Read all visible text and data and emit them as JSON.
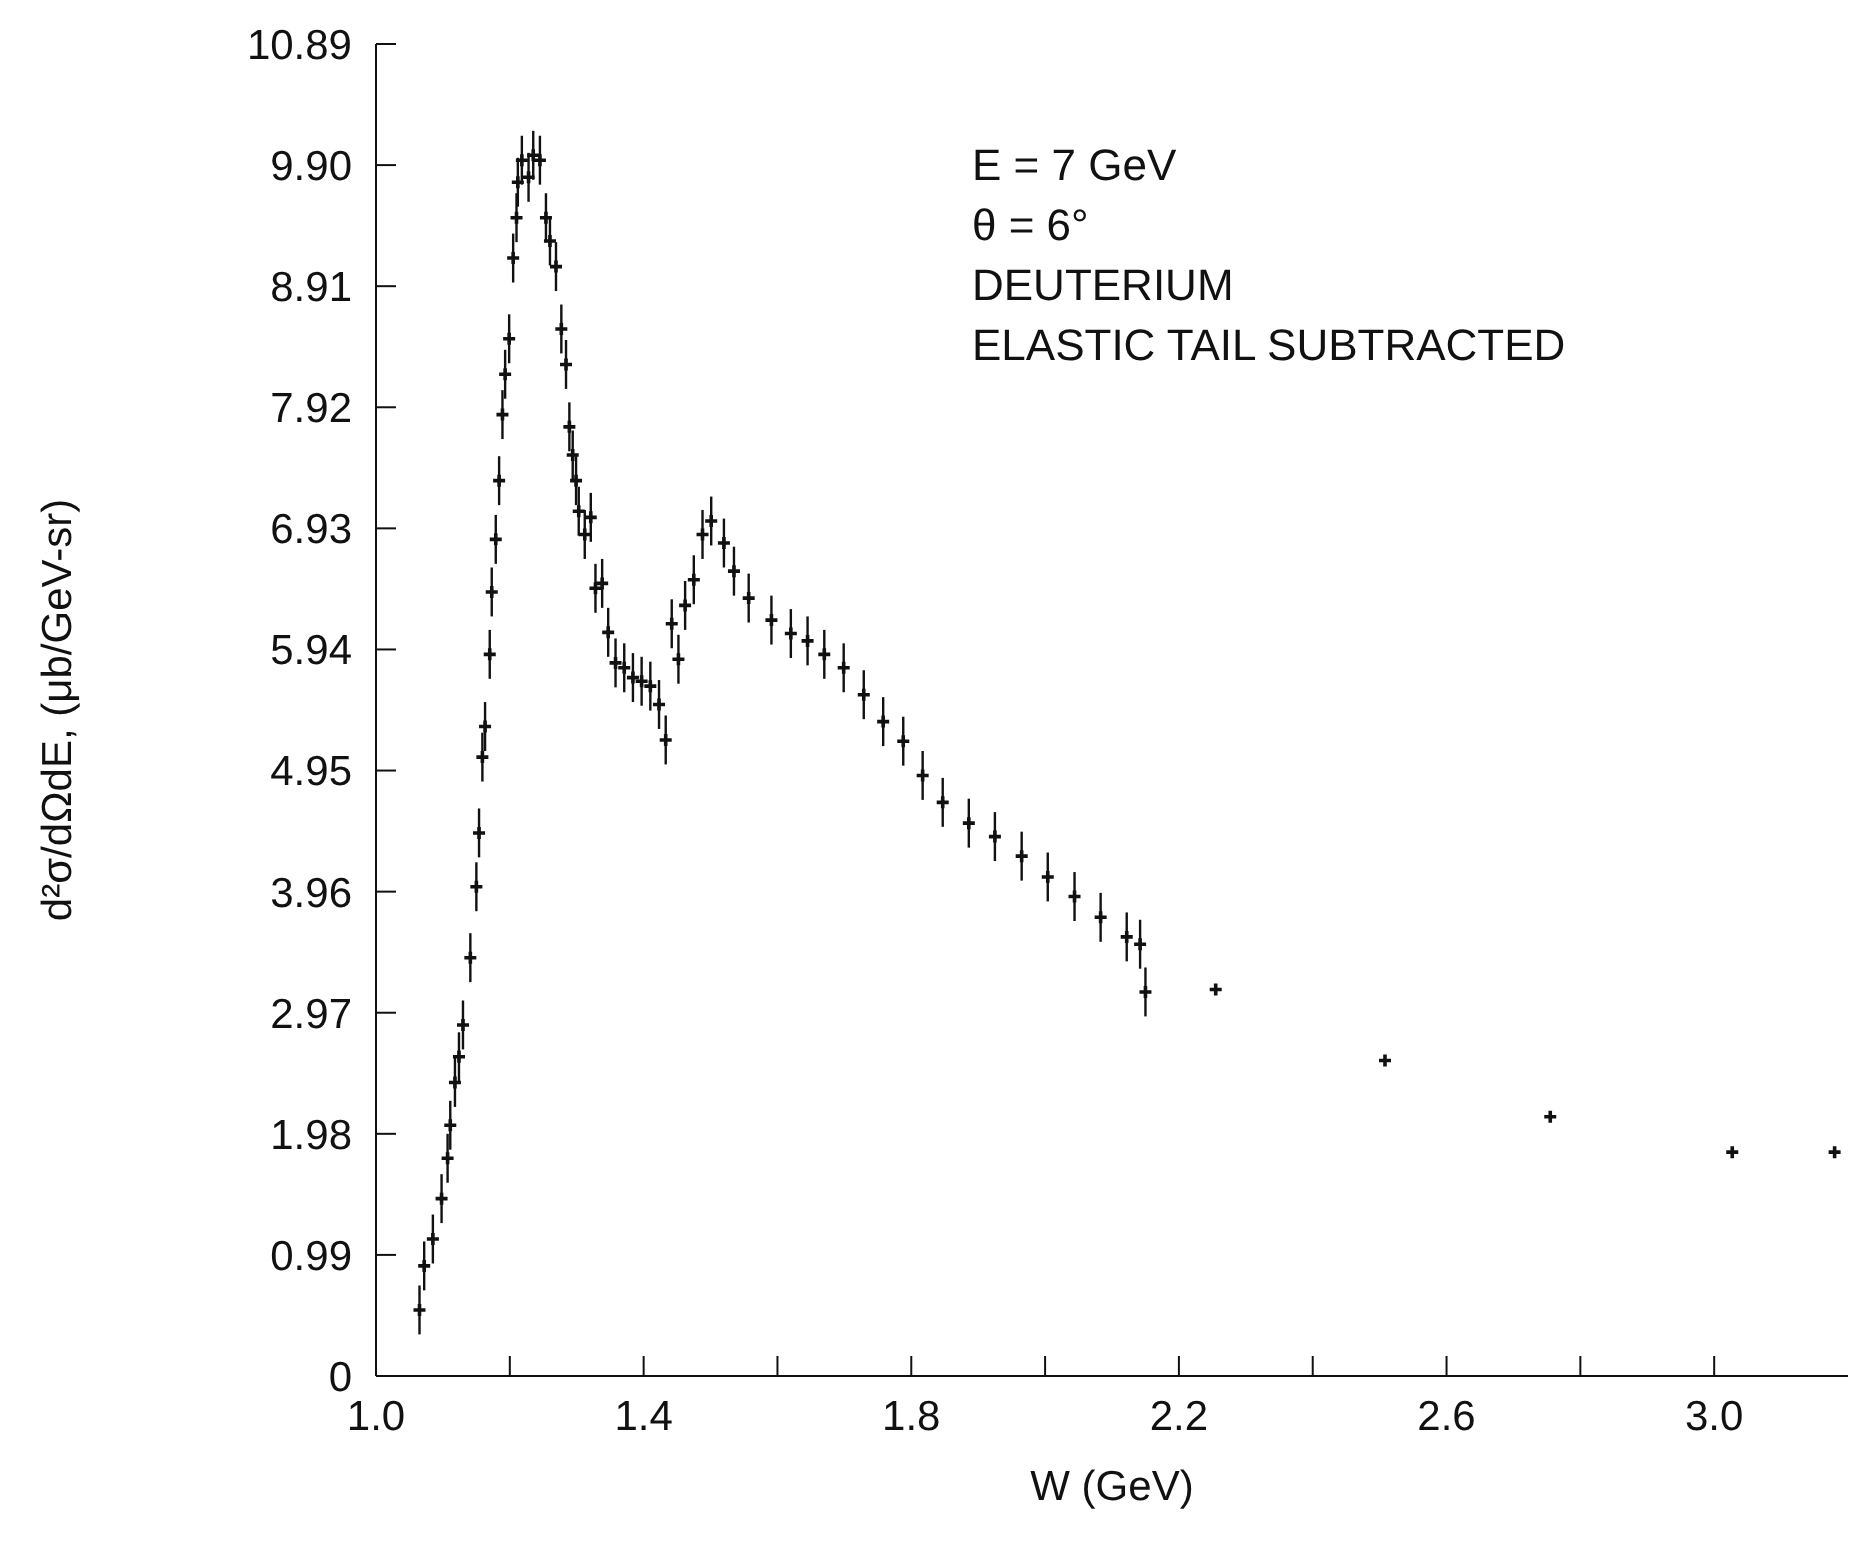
{
  "chart_data": {
    "type": "scatter",
    "xlabel": "W (GeV)",
    "ylabel": "d²σ/dΩdE, (μb/GeV-sr)",
    "annotations": [
      "E = 7 GeV",
      "θ = 6°",
      "DEUTERIUM",
      "ELASTIC TAIL SUBTRACTED"
    ],
    "xlim": [
      1.0,
      3.2
    ],
    "xticks": [
      {
        "value": 1.0,
        "label": "1.0"
      },
      {
        "value": 1.2,
        "label": null
      },
      1.4,
      {
        "value": 1.6,
        "label": null
      },
      1.8,
      {
        "value": 2.0,
        "label": null
      },
      2.2,
      {
        "value": 2.4,
        "label": null
      },
      2.6,
      {
        "value": 2.8,
        "label": null
      },
      {
        "value": 3.0,
        "label": "3.0"
      }
    ],
    "ylim": [
      0,
      10.89
    ],
    "yticks": [
      0,
      0.99,
      1.98,
      2.97,
      3.96,
      4.95,
      5.94,
      6.93,
      7.92,
      8.91,
      {
        "value": 9.9,
        "label": "9.90"
      },
      10.89
    ],
    "marker": "cross",
    "grid": false,
    "legend": false,
    "series": [
      {
        "color": "#111111",
        "x": [
          1.065,
          1.072,
          1.085,
          1.098,
          1.107,
          1.111,
          1.118,
          1.124,
          1.13,
          1.141,
          1.15,
          1.154,
          1.159,
          1.163,
          1.17,
          1.173,
          1.179,
          1.184,
          1.189,
          1.193,
          1.199,
          1.205,
          1.21,
          1.212,
          1.218,
          1.228,
          1.235,
          1.245,
          1.254,
          1.26,
          1.269,
          1.277,
          1.284,
          1.289,
          1.294,
          1.299,
          1.303,
          1.312,
          1.321,
          1.328,
          1.338,
          1.347,
          1.358,
          1.371,
          1.384,
          1.397,
          1.41,
          1.423,
          1.433,
          1.442,
          1.452,
          1.462,
          1.475,
          1.488,
          1.501,
          1.52,
          1.535,
          1.557,
          1.591,
          1.62,
          1.645,
          1.67,
          1.699,
          1.729,
          1.758,
          1.788,
          1.817,
          1.847,
          1.886,
          1.925,
          1.965,
          2.004,
          2.044,
          2.083,
          2.122,
          2.142,
          2.15,
          2.255,
          2.508,
          2.755,
          3.027,
          3.18
        ],
        "values": [
          0.54,
          0.9,
          1.12,
          1.45,
          1.78,
          2.05,
          2.4,
          2.61,
          2.87,
          3.42,
          4.0,
          4.44,
          5.06,
          5.31,
          5.9,
          6.41,
          6.84,
          7.32,
          7.86,
          8.19,
          8.48,
          9.14,
          9.47,
          9.76,
          9.94,
          9.8,
          9.98,
          9.94,
          9.47,
          9.28,
          9.07,
          8.56,
          8.27,
          7.76,
          7.53,
          7.32,
          7.07,
          6.88,
          7.02,
          6.44,
          6.48,
          6.08,
          5.83,
          5.79,
          5.71,
          5.68,
          5.64,
          5.49,
          5.2,
          6.15,
          5.86,
          6.3,
          6.51,
          6.88,
          6.99,
          6.81,
          6.58,
          6.36,
          6.18,
          6.07,
          6.01,
          5.9,
          5.79,
          5.57,
          5.35,
          5.19,
          4.91,
          4.69,
          4.52,
          4.41,
          4.25,
          4.08,
          3.92,
          3.75,
          3.59,
          3.53,
          3.14,
          3.16,
          2.58,
          2.12,
          1.83,
          1.83
        ],
        "errors": [
          0.2,
          0.2,
          0.2,
          0.2,
          0.2,
          0.2,
          0.2,
          0.2,
          0.2,
          0.2,
          0.2,
          0.2,
          0.2,
          0.2,
          0.2,
          0.2,
          0.2,
          0.2,
          0.2,
          0.2,
          0.2,
          0.2,
          0.2,
          0.2,
          0.2,
          0.2,
          0.2,
          0.2,
          0.2,
          0.2,
          0.2,
          0.2,
          0.2,
          0.2,
          0.2,
          0.2,
          0.2,
          0.2,
          0.2,
          0.2,
          0.2,
          0.2,
          0.2,
          0.2,
          0.2,
          0.2,
          0.2,
          0.2,
          0.2,
          0.2,
          0.2,
          0.2,
          0.2,
          0.2,
          0.2,
          0.2,
          0.2,
          0.2,
          0.2,
          0.2,
          0.2,
          0.2,
          0.2,
          0.2,
          0.2,
          0.2,
          0.2,
          0.2,
          0.2,
          0.2,
          0.2,
          0.2,
          0.2,
          0.2,
          0.2,
          0.2,
          0.2,
          null,
          null,
          null,
          null,
          null
        ]
      }
    ]
  }
}
